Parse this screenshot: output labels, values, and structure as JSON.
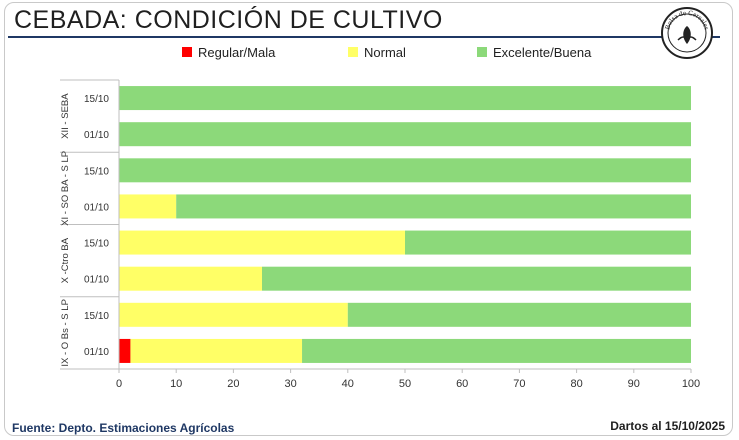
{
  "title": "CEBADA: CONDICIÓN DE CULTIVO",
  "logo_text": "Bolsa de Cereales",
  "source": "Fuente: Depto. Estimaciones Agrícolas",
  "date_note": "Dartos al 15/10/2025",
  "chart_data": {
    "type": "bar",
    "orientation": "horizontal",
    "stacked": true,
    "groups": [
      {
        "name": "XII - SEBA",
        "categories": [
          "15/10",
          "01/10"
        ]
      },
      {
        "name": "XI - SO BA - S LP",
        "categories": [
          "15/10",
          "01/10"
        ]
      },
      {
        "name": "X -Ctro BA",
        "categories": [
          "15/10",
          "01/10"
        ]
      },
      {
        "name": "IX - O Bs - S LP",
        "categories": [
          "15/10",
          "01/10"
        ]
      }
    ],
    "series": [
      {
        "name": "Regular/Mala",
        "color": "#ff0000",
        "values": [
          0,
          0,
          0,
          0,
          0,
          0,
          0,
          2
        ]
      },
      {
        "name": "Normal",
        "color": "#ffff66",
        "values": [
          0,
          0,
          0,
          10,
          50,
          25,
          40,
          30
        ]
      },
      {
        "name": "Excelente/Buena",
        "color": "#8cd97a",
        "values": [
          100,
          100,
          100,
          90,
          50,
          75,
          60,
          68
        ]
      }
    ],
    "xlim": [
      0,
      100
    ],
    "xticks": [
      0,
      10,
      20,
      30,
      40,
      50,
      60,
      70,
      80,
      90,
      100
    ],
    "legend_position": "top",
    "grid": false
  }
}
